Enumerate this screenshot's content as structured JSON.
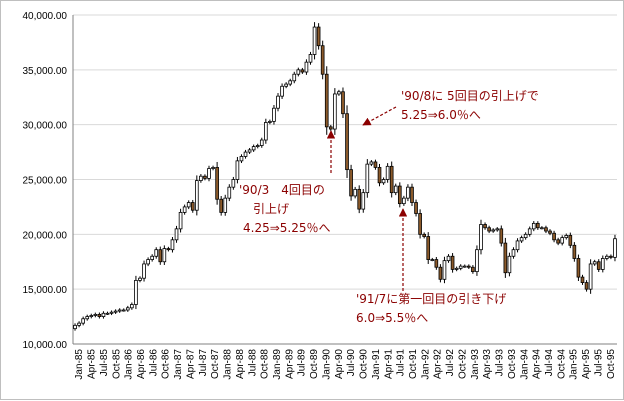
{
  "chart_data": {
    "type": "candlestick",
    "title": "",
    "xlabel": "",
    "ylabel": "",
    "ylim": [
      10000,
      40000
    ],
    "y_ticks": [
      "10,000.00",
      "15,000.00",
      "20,000.00",
      "25,000.00",
      "30,000.00",
      "35,000.00",
      "40,000.00"
    ],
    "x_ticks": [
      "Jan-85",
      "Apr-85",
      "Jul-85",
      "Oct-85",
      "Jan-86",
      "Apr-86",
      "Jul-86",
      "Oct-86",
      "Jan-87",
      "Apr-87",
      "Jul-87",
      "Oct-87",
      "Jan-88",
      "Apr-88",
      "Jul-88",
      "Oct-88",
      "Jan-89",
      "Apr-89",
      "Jul-89",
      "Oct-89",
      "Jan-90",
      "Apr-90",
      "Jul-90",
      "Oct-90",
      "Jan-91",
      "Apr-91",
      "Jul-91",
      "Oct-91",
      "Jan-92",
      "Apr-92",
      "Jul-92",
      "Oct-92",
      "Jan-93",
      "Apr-93",
      "Jul-93",
      "Oct-93",
      "Jan-94",
      "Apr-94",
      "Jul-94",
      "Oct-94",
      "Jan-95",
      "Apr-95",
      "Jul-95",
      "Oct-95"
    ],
    "grid": "horizontal",
    "up_color": "#ffffff",
    "down_color": "#8b5a2b",
    "closes": [
      11700,
      11900,
      12300,
      12500,
      12600,
      12700,
      12500,
      12800,
      12800,
      12900,
      13000,
      13100,
      13100,
      13300,
      13600,
      15800,
      16000,
      17300,
      17700,
      18000,
      18600,
      17500,
      18700,
      18600,
      19500,
      20500,
      22000,
      22500,
      22900,
      22200,
      24900,
      25300,
      25100,
      26000,
      26100,
      23200,
      22000,
      23300,
      24300,
      25000,
      26700,
      27100,
      27500,
      27700,
      28000,
      28100,
      28600,
      30200,
      30300,
      31500,
      32600,
      33500,
      33700,
      34000,
      34600,
      35000,
      34800,
      35700,
      36400,
      38900,
      37200,
      34600,
      29800,
      29600,
      32800,
      33000,
      31000,
      25900,
      23500,
      24100,
      22300,
      23800,
      26400,
      26600,
      26100,
      24700,
      25000,
      26200,
      23800,
      24400,
      22800,
      23300,
      24300,
      22900,
      21900,
      20000,
      19800,
      17700,
      17700,
      17000,
      15900,
      17600,
      18000,
      16800,
      16900,
      17100,
      17100,
      17000,
      16600,
      18600,
      20900,
      20600,
      20300,
      20400,
      20500,
      19200,
      16500,
      18000,
      18600,
      19400,
      19700,
      20000,
      20500,
      21000,
      20600,
      20600,
      20300,
      20100,
      19500,
      19200,
      19700,
      19900,
      19000,
      17800,
      16100,
      15600,
      15000,
      17300,
      17500,
      16800,
      17800,
      18000,
      17900,
      19600
    ],
    "annotations": [
      {
        "lines": [
          "'90/3　4回目の",
          "引上げ",
          "4.25⇒5.25％へ"
        ]
      },
      {
        "lines": [
          "'90/8に 5回目の引上げで",
          "5.25⇒6.0％へ"
        ]
      },
      {
        "lines": [
          "'91/7に第一回目の引き下げ",
          "6.0⇒5.5％へ"
        ]
      }
    ]
  }
}
